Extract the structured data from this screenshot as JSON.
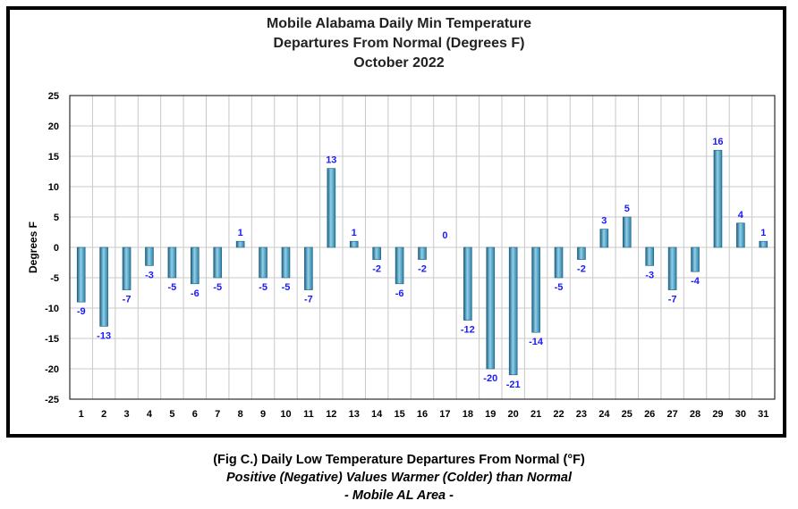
{
  "chart_data": {
    "type": "bar",
    "title_lines": [
      "Mobile Alabama Daily Min Temperature",
      "Departures From Normal (Degrees F)",
      "October 2022"
    ],
    "xlabel": "",
    "ylabel": "Degrees F",
    "ylim": [
      -25,
      25
    ],
    "yticks": [
      25,
      20,
      15,
      10,
      5,
      0,
      -5,
      -10,
      -15,
      -20,
      -25
    ],
    "categories": [
      "1",
      "2",
      "3",
      "4",
      "5",
      "6",
      "7",
      "8",
      "9",
      "10",
      "11",
      "12",
      "13",
      "14",
      "15",
      "16",
      "17",
      "18",
      "19",
      "20",
      "21",
      "22",
      "23",
      "24",
      "25",
      "26",
      "27",
      "28",
      "29",
      "30",
      "31"
    ],
    "values": [
      -9,
      -13,
      -7,
      -3,
      -5,
      -6,
      -5,
      1,
      -5,
      -5,
      -7,
      13,
      1,
      -2,
      -6,
      -2,
      0,
      -12,
      -20,
      -21,
      -14,
      -5,
      -2,
      3,
      5,
      -3,
      -7,
      -4,
      16,
      4,
      1
    ],
    "grid": true,
    "legend": "none",
    "colors": {
      "bar": "#3a8fb5",
      "bar_light": "#8fd0ea",
      "bar_dark": "#1e5f80",
      "data_label": "#1a1aff",
      "grid": "#c8c8c8",
      "plot_border": "#000000"
    }
  },
  "caption": {
    "line1": "(Fig C.) Daily Low Temperature Departures From Normal (°F)",
    "line2": "Positive (Negative) Values Warmer (Colder) than Normal",
    "line3": "- Mobile AL Area -"
  }
}
